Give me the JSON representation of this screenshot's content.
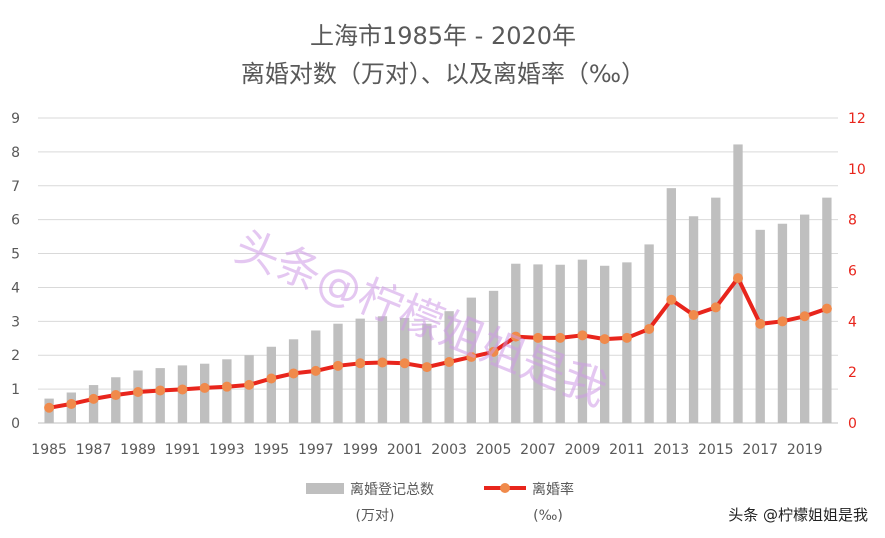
{
  "chart_data": {
    "type": "bar+line",
    "title_line1": "上海市1985年 - 2020年",
    "title_line2": "离婚对数（万对）、以及离婚率（‰）",
    "x": [
      "1985",
      "1986",
      "1987",
      "1988",
      "1989",
      "1990",
      "1991",
      "1992",
      "1993",
      "1994",
      "1995",
      "1996",
      "1997",
      "1998",
      "1999",
      "2000",
      "2001",
      "2002",
      "2003",
      "2004",
      "2005",
      "2006",
      "2007",
      "2008",
      "2009",
      "2010",
      "2011",
      "2012",
      "2013",
      "2014",
      "2015",
      "2016",
      "2017",
      "2018",
      "2019",
      "2020"
    ],
    "x_tick_labels": [
      "1985",
      "1987",
      "1989",
      "1991",
      "1993",
      "1995",
      "1997",
      "1999",
      "2001",
      "2003",
      "2005",
      "2007",
      "2009",
      "2011",
      "2013",
      "2015",
      "2017",
      "2019"
    ],
    "series": [
      {
        "name": "离婚登记总数",
        "unit_label": "(万对)",
        "type": "bar",
        "axis": "left",
        "color": "#bfbfbf",
        "values": [
          0.72,
          0.9,
          1.12,
          1.35,
          1.55,
          1.62,
          1.7,
          1.75,
          1.88,
          2.0,
          2.25,
          2.47,
          2.73,
          2.93,
          3.08,
          3.15,
          3.1,
          2.93,
          3.3,
          3.7,
          3.9,
          4.7,
          4.68,
          4.67,
          4.82,
          4.64,
          4.74,
          5.27,
          6.93,
          6.1,
          6.65,
          8.22,
          5.7,
          5.88,
          6.15,
          6.65
        ]
      },
      {
        "name": "离婚率",
        "unit_label": "(‰)",
        "type": "line",
        "axis": "right",
        "color": "#e8251c",
        "marker_color": "#f08a4b",
        "values": [
          0.6,
          0.75,
          0.95,
          1.1,
          1.22,
          1.28,
          1.32,
          1.38,
          1.43,
          1.5,
          1.75,
          1.95,
          2.05,
          2.25,
          2.35,
          2.38,
          2.35,
          2.2,
          2.4,
          2.6,
          2.8,
          3.4,
          3.35,
          3.35,
          3.45,
          3.3,
          3.35,
          3.7,
          4.85,
          4.25,
          4.55,
          5.7,
          3.9,
          4.0,
          4.2,
          4.5
        ]
      }
    ],
    "y_left": {
      "min": 0,
      "max": 9,
      "ticks": [
        "0",
        "1",
        "2",
        "3",
        "4",
        "5",
        "6",
        "7",
        "8",
        "9"
      ]
    },
    "y_right": {
      "min": 0,
      "max": 12,
      "ticks": [
        "0",
        "2",
        "4",
        "6",
        "8",
        "10",
        "12"
      ]
    },
    "grid": true,
    "legend_position": "bottom"
  },
  "watermark": {
    "diagonal": "头条@柠檬姐姐是我",
    "corner": "头条 @柠檬姐姐是我"
  }
}
